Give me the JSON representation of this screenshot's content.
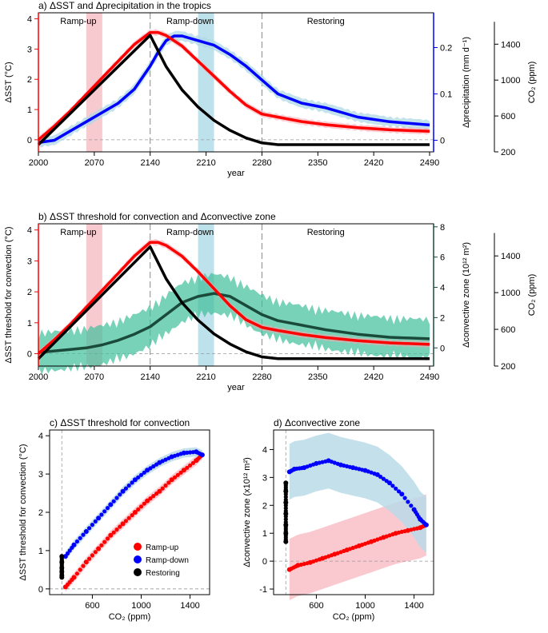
{
  "chart_data": [
    {
      "id": "a",
      "type": "line",
      "title": "a) ΔSST and Δprecipitation in the tropics",
      "xlabel": "year",
      "ylabel_left": "ΔSST (°C)",
      "ylabel_right1": "Δprecipitation (mm d⁻¹)",
      "ylabel_right2": "CO₂ (ppm)",
      "xlim": [
        2000,
        2495
      ],
      "ylim_left": [
        -0.4,
        4.2
      ],
      "ylim_right1": [
        -0.025,
        0.275
      ],
      "ylim_right2": [
        200,
        1750
      ],
      "xticks": [
        "2000",
        "2070",
        "2140",
        "2210",
        "2280",
        "2350",
        "2420",
        "2490"
      ],
      "yticks_left": [
        "0",
        "1",
        "2",
        "3",
        "4"
      ],
      "yticks_right1": [
        "0",
        "0.1",
        "0.2"
      ],
      "yticks_right2": [
        "200",
        "600",
        "1000",
        "1400"
      ],
      "phases": [
        {
          "label": "Ramp-up",
          "x": 2050
        },
        {
          "label": "Ramp-down",
          "x": 2190
        },
        {
          "label": "Restoring",
          "x": 2360
        }
      ],
      "shaded_periods": [
        {
          "x0": 2060,
          "x1": 2080,
          "color": "#f4b8c0"
        },
        {
          "x0": 2200,
          "x1": 2220,
          "color": "#a8d8e6"
        }
      ],
      "dividers": [
        2140,
        2280
      ],
      "series": [
        {
          "name": "ΔSST",
          "axis": "left",
          "color": "#ff0000",
          "x": [
            2000,
            2020,
            2040,
            2060,
            2080,
            2100,
            2120,
            2140,
            2150,
            2160,
            2180,
            2200,
            2220,
            2240,
            2260,
            2280,
            2300,
            2330,
            2360,
            2400,
            2440,
            2490
          ],
          "y": [
            0.0,
            0.45,
            0.95,
            1.5,
            2.05,
            2.6,
            3.15,
            3.55,
            3.55,
            3.45,
            3.1,
            2.6,
            2.1,
            1.6,
            1.15,
            0.85,
            0.75,
            0.6,
            0.5,
            0.4,
            0.33,
            0.28
          ]
        },
        {
          "name": "Δprecipitation",
          "axis": "right1",
          "color": "#0000ff",
          "x": [
            2000,
            2020,
            2040,
            2060,
            2080,
            2100,
            2120,
            2140,
            2150,
            2160,
            2170,
            2180,
            2200,
            2220,
            2240,
            2260,
            2280,
            2300,
            2330,
            2360,
            2400,
            2440,
            2490
          ],
          "y": [
            -0.005,
            0.0,
            0.02,
            0.04,
            0.06,
            0.08,
            0.11,
            0.16,
            0.19,
            0.215,
            0.225,
            0.225,
            0.215,
            0.205,
            0.185,
            0.16,
            0.13,
            0.1,
            0.08,
            0.07,
            0.05,
            0.04,
            0.033
          ]
        },
        {
          "name": "CO₂",
          "axis": "right2",
          "color": "#000000",
          "x": [
            2000,
            2140,
            2160,
            2180,
            2200,
            2220,
            2240,
            2260,
            2280,
            2300,
            2490
          ],
          "y": [
            280,
            1500,
            1150,
            890,
            700,
            550,
            440,
            355,
            300,
            280,
            280
          ]
        }
      ]
    },
    {
      "id": "b",
      "type": "line",
      "title": "b) ΔSST threshold for convection and Δconvective zone",
      "xlabel": "year",
      "ylabel_left": "ΔSST threshold for convection (°C)",
      "ylabel_right1": "Δconvective zone (10¹² m²)",
      "ylabel_right2": "CO₂ (ppm)",
      "xlim": [
        2000,
        2495
      ],
      "ylim_left": [
        -0.4,
        4.2
      ],
      "ylim_right1": [
        -1.2,
        8.2
      ],
      "ylim_right2": [
        200,
        1750
      ],
      "xticks": [
        "2000",
        "2070",
        "2140",
        "2210",
        "2280",
        "2350",
        "2420",
        "2490"
      ],
      "yticks_left": [
        "0",
        "1",
        "2",
        "3",
        "4"
      ],
      "yticks_right1": [
        "0",
        "2",
        "4",
        "6",
        "8"
      ],
      "yticks_right2": [
        "200",
        "600",
        "1000",
        "1400"
      ],
      "phases": [
        {
          "label": "Ramp-up",
          "x": 2050
        },
        {
          "label": "Ramp-down",
          "x": 2190
        },
        {
          "label": "Restoring",
          "x": 2360
        }
      ],
      "shaded_periods": [
        {
          "x0": 2060,
          "x1": 2080,
          "color": "#f4b8c0"
        },
        {
          "x0": 2200,
          "x1": 2220,
          "color": "#a8d8e6"
        }
      ],
      "dividers": [
        2140,
        2280
      ],
      "series": [
        {
          "name": "ΔSST threshold for convection",
          "axis": "left",
          "color": "#ff0000",
          "x": [
            2000,
            2020,
            2040,
            2060,
            2080,
            2100,
            2120,
            2140,
            2150,
            2160,
            2180,
            2200,
            2220,
            2240,
            2260,
            2280,
            2300,
            2330,
            2360,
            2400,
            2440,
            2490
          ],
          "y": [
            0.0,
            0.45,
            0.95,
            1.5,
            2.05,
            2.6,
            3.15,
            3.6,
            3.6,
            3.5,
            3.15,
            2.65,
            2.1,
            1.55,
            1.1,
            0.85,
            0.75,
            0.62,
            0.52,
            0.42,
            0.35,
            0.3
          ]
        },
        {
          "name": "Δconvective zone",
          "axis": "right1",
          "color": "#1a4a3a",
          "x": [
            2000,
            2020,
            2040,
            2060,
            2080,
            2100,
            2120,
            2140,
            2160,
            2180,
            2200,
            2220,
            2240,
            2260,
            2280,
            2300,
            2330,
            2360,
            2400,
            2440,
            2490
          ],
          "y": [
            -0.3,
            -0.2,
            -0.1,
            0.0,
            0.2,
            0.5,
            0.9,
            1.4,
            2.2,
            3.0,
            3.4,
            3.6,
            3.4,
            2.8,
            2.2,
            1.8,
            1.5,
            1.2,
            0.9,
            0.7,
            0.6
          ]
        },
        {
          "name": "CO₂",
          "axis": "right2",
          "color": "#000000",
          "x": [
            2000,
            2140,
            2160,
            2180,
            2200,
            2220,
            2240,
            2260,
            2280,
            2300,
            2490
          ],
          "y": [
            280,
            1500,
            1150,
            890,
            700,
            550,
            440,
            355,
            300,
            280,
            280
          ]
        }
      ]
    },
    {
      "id": "c",
      "type": "scatter",
      "title": "c) ΔSST threshold for convection",
      "xlabel": "CO₂ (ppm)",
      "ylabel": "ΔSST threshold for convection (°C)",
      "xlim": [
        250,
        1560
      ],
      "ylim": [
        -0.15,
        4.15
      ],
      "xticks": [
        "600",
        "1000",
        "1400"
      ],
      "yticks": [
        "0",
        "1",
        "2",
        "3",
        "4"
      ],
      "legend": [
        "Ramp-up",
        "Ramp-down",
        "Restoring"
      ],
      "legend_position": "bottom-right",
      "series": [
        {
          "name": "Ramp-up",
          "color": "#ff0000",
          "x": [
            380,
            450,
            550,
            650,
            750,
            850,
            950,
            1050,
            1150,
            1250,
            1350,
            1450,
            1500
          ],
          "y": [
            0.05,
            0.3,
            0.7,
            1.05,
            1.4,
            1.7,
            2.0,
            2.3,
            2.55,
            2.85,
            3.1,
            3.35,
            3.5
          ]
        },
        {
          "name": "Ramp-down",
          "color": "#0000ff",
          "x": [
            1500,
            1450,
            1350,
            1250,
            1150,
            1050,
            950,
            850,
            750,
            650,
            550,
            450,
            380
          ],
          "y": [
            3.5,
            3.58,
            3.55,
            3.45,
            3.3,
            3.1,
            2.85,
            2.55,
            2.2,
            1.85,
            1.5,
            1.15,
            0.85
          ]
        },
        {
          "name": "Restoring",
          "color": "#000000",
          "x": [
            350,
            350,
            350,
            350,
            350,
            350
          ],
          "y": [
            0.85,
            0.7,
            0.55,
            0.45,
            0.35,
            0.3
          ]
        }
      ]
    },
    {
      "id": "d",
      "type": "scatter",
      "title": "d) Δconvective zone",
      "xlabel": "CO₂ (ppm)",
      "ylabel": "Δconvective zone (x10¹² m²)",
      "xlim": [
        250,
        1560
      ],
      "ylim": [
        -1.2,
        4.7
      ],
      "xticks": [
        "600",
        "1000",
        "1400"
      ],
      "yticks": [
        "-1",
        "0",
        "1",
        "2",
        "3",
        "4"
      ],
      "series": [
        {
          "name": "Ramp-up",
          "color": "#ff0000",
          "x": [
            380,
            450,
            550,
            650,
            750,
            850,
            950,
            1050,
            1150,
            1250,
            1350,
            1450,
            1500
          ],
          "y": [
            -0.3,
            -0.15,
            -0.05,
            0.1,
            0.25,
            0.4,
            0.55,
            0.7,
            0.85,
            1.0,
            1.1,
            1.2,
            1.3
          ]
        },
        {
          "name": "Ramp-down",
          "color": "#0000ff",
          "x": [
            1500,
            1450,
            1400,
            1300,
            1200,
            1100,
            1000,
            900,
            800,
            700,
            600,
            500,
            420,
            380
          ],
          "y": [
            1.3,
            1.5,
            1.85,
            2.4,
            2.8,
            3.1,
            3.25,
            3.35,
            3.45,
            3.6,
            3.5,
            3.35,
            3.3,
            3.2
          ]
        },
        {
          "name": "Restoring",
          "color": "#000000",
          "x": [
            350,
            350,
            350,
            350,
            350,
            350,
            350
          ],
          "y": [
            2.8,
            2.5,
            2.1,
            1.7,
            1.3,
            1.0,
            0.7
          ]
        }
      ]
    }
  ]
}
